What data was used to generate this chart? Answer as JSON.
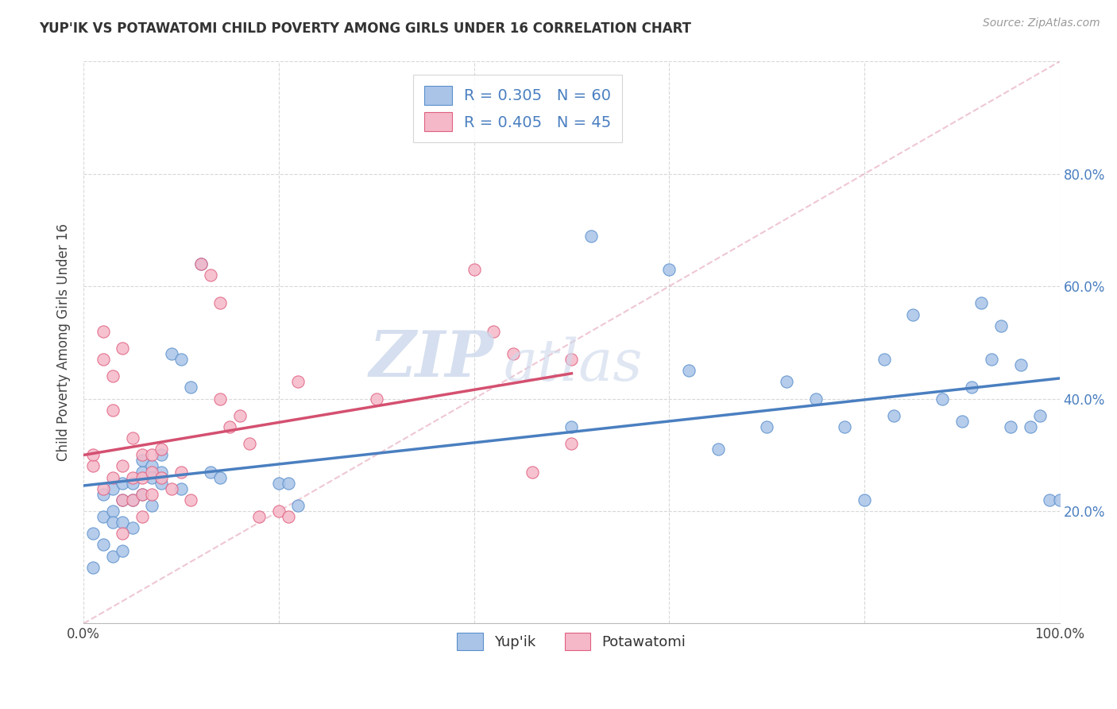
{
  "title": "YUP'IK VS POTAWATOMI CHILD POVERTY AMONG GIRLS UNDER 16 CORRELATION CHART",
  "source": "Source: ZipAtlas.com",
  "ylabel": "Child Poverty Among Girls Under 16",
  "R_yupik": 0.305,
  "N_yupik": 60,
  "R_potawatomi": 0.405,
  "N_potawatomi": 45,
  "color_yupik_fill": "#aac4e8",
  "color_yupik_edge": "#5a90cc",
  "color_potawatomi_fill": "#f5b8c8",
  "color_potawatomi_edge": "#e06080",
  "color_line_yupik": "#4a7fc0",
  "color_line_potawatomi": "#d45070",
  "color_diag": "#e8b0c0",
  "xlim": [
    0,
    1.0
  ],
  "ylim": [
    0,
    1.0
  ],
  "background_color": "#ffffff",
  "watermark_zip": "ZIP",
  "watermark_atlas": "atlas",
  "legend_yupik": "Yup'ik",
  "legend_potawatomi": "Potawatomi",
  "yupik_x": [
    0.01,
    0.01,
    0.02,
    0.02,
    0.02,
    0.03,
    0.03,
    0.03,
    0.03,
    0.04,
    0.04,
    0.04,
    0.04,
    0.05,
    0.05,
    0.05,
    0.06,
    0.06,
    0.06,
    0.07,
    0.07,
    0.07,
    0.08,
    0.08,
    0.08,
    0.09,
    0.1,
    0.1,
    0.11,
    0.12,
    0.13,
    0.14,
    0.2,
    0.21,
    0.22,
    0.5,
    0.52,
    0.6,
    0.62,
    0.65,
    0.7,
    0.72,
    0.75,
    0.78,
    0.8,
    0.82,
    0.83,
    0.85,
    0.88,
    0.9,
    0.91,
    0.92,
    0.93,
    0.94,
    0.95,
    0.96,
    0.97,
    0.98,
    0.99,
    1.0
  ],
  "yupik_y": [
    0.16,
    0.1,
    0.19,
    0.23,
    0.14,
    0.2,
    0.24,
    0.18,
    0.12,
    0.22,
    0.25,
    0.18,
    0.13,
    0.25,
    0.22,
    0.17,
    0.27,
    0.29,
    0.23,
    0.26,
    0.28,
    0.21,
    0.3,
    0.25,
    0.27,
    0.48,
    0.47,
    0.24,
    0.42,
    0.64,
    0.27,
    0.26,
    0.25,
    0.25,
    0.21,
    0.35,
    0.69,
    0.63,
    0.45,
    0.31,
    0.35,
    0.43,
    0.4,
    0.35,
    0.22,
    0.47,
    0.37,
    0.55,
    0.4,
    0.36,
    0.42,
    0.57,
    0.47,
    0.53,
    0.35,
    0.46,
    0.35,
    0.37,
    0.22,
    0.22
  ],
  "potawatomi_x": [
    0.01,
    0.01,
    0.02,
    0.02,
    0.02,
    0.03,
    0.03,
    0.03,
    0.04,
    0.04,
    0.04,
    0.04,
    0.05,
    0.05,
    0.05,
    0.06,
    0.06,
    0.06,
    0.06,
    0.07,
    0.07,
    0.07,
    0.08,
    0.08,
    0.09,
    0.1,
    0.11,
    0.12,
    0.13,
    0.14,
    0.14,
    0.15,
    0.16,
    0.17,
    0.18,
    0.2,
    0.21,
    0.22,
    0.3,
    0.4,
    0.42,
    0.44,
    0.46,
    0.5,
    0.5
  ],
  "potawatomi_y": [
    0.28,
    0.3,
    0.52,
    0.47,
    0.24,
    0.44,
    0.38,
    0.26,
    0.49,
    0.28,
    0.22,
    0.16,
    0.33,
    0.26,
    0.22,
    0.3,
    0.26,
    0.23,
    0.19,
    0.3,
    0.27,
    0.23,
    0.31,
    0.26,
    0.24,
    0.27,
    0.22,
    0.64,
    0.62,
    0.57,
    0.4,
    0.35,
    0.37,
    0.32,
    0.19,
    0.2,
    0.19,
    0.43,
    0.4,
    0.63,
    0.52,
    0.48,
    0.27,
    0.47,
    0.32
  ]
}
